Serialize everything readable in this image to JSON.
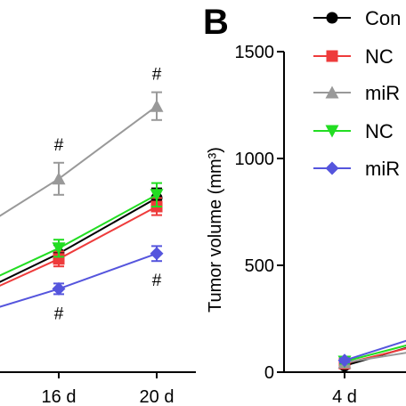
{
  "chart_data": [
    {
      "type": "line",
      "panel": "A",
      "x": [
        "16 d",
        "20 d"
      ],
      "y_range": [
        0,
        1500
      ],
      "series": [
        {
          "name": "Con",
          "values": [
            555,
            815
          ],
          "err": [
            40,
            45
          ],
          "color": "#000000",
          "marker": "circle"
        },
        {
          "name": "NC",
          "values": [
            530,
            775
          ],
          "err": [
            35,
            40
          ],
          "color": "#ee3b3b",
          "marker": "square"
        },
        {
          "name": "miR",
          "values": [
            905,
            1245
          ],
          "err": [
            75,
            65
          ],
          "color": "#999999",
          "marker": "triangle-up"
        },
        {
          "name": "NC",
          "values": [
            580,
            830
          ],
          "err": [
            40,
            55
          ],
          "color": "#22dd22",
          "marker": "triangle-down"
        },
        {
          "name": "miR",
          "values": [
            390,
            555
          ],
          "err": [
            25,
            35
          ],
          "color": "#5555dd",
          "marker": "diamond"
        }
      ],
      "annotations": [
        {
          "x": "16 d",
          "text": "#",
          "above_series": 2
        },
        {
          "x": "20 d",
          "text": "#",
          "above_series": 2
        },
        {
          "x": "16 d",
          "text": "#",
          "below_series": 4
        },
        {
          "x": "20 d",
          "text": "#",
          "below_series": 4
        }
      ]
    },
    {
      "type": "line",
      "panel": "B",
      "panel_label": "B",
      "ylabel": "Tumor volume (mm³)",
      "ylim": [
        0,
        1500
      ],
      "yticks": [
        "0",
        "500",
        "1000",
        "1500"
      ],
      "x": [
        "4 d"
      ],
      "series": [
        {
          "name": "Con",
          "values": [
            30
          ],
          "err": [
            10
          ],
          "color": "#000000",
          "marker": "circle"
        },
        {
          "name": "NC",
          "values": [
            40
          ],
          "err": [
            10
          ],
          "color": "#ee3b3b",
          "marker": "square"
        },
        {
          "name": "miR",
          "values": [
            45
          ],
          "err": [
            10
          ],
          "color": "#999999",
          "marker": "triangle-up"
        },
        {
          "name": "NC",
          "values": [
            50
          ],
          "err": [
            10
          ],
          "color": "#22dd22",
          "marker": "triangle-down"
        },
        {
          "name": "miR",
          "values": [
            55
          ],
          "err": [
            10
          ],
          "color": "#5555dd",
          "marker": "diamond"
        }
      ],
      "legend_placement": "top-right",
      "legend": [
        "Con",
        "NC",
        "miR",
        "NC",
        "miR"
      ]
    }
  ]
}
